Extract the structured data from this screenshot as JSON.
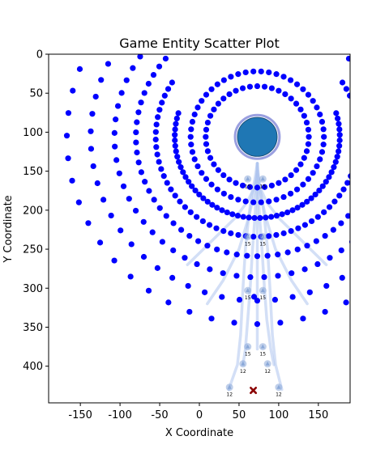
{
  "chart_data": {
    "type": "scatter",
    "title": "Game Entity Scatter Plot",
    "xlabel": "X Coordinate",
    "ylabel": "Y Coordinate",
    "xlim": [
      -190,
      190
    ],
    "ylim": [
      447,
      0
    ],
    "y_inverted": true,
    "grid": false,
    "legend": "none",
    "x_ticks": [
      -150,
      -100,
      -50,
      0,
      50,
      100,
      150
    ],
    "y_ticks": [
      0,
      50,
      100,
      150,
      200,
      250,
      300,
      350,
      400
    ],
    "colors": {
      "points": "#0000ff",
      "paths": "#aec4ee",
      "core_fill": "#1f77b4",
      "core_ring": "#8187d8",
      "marker_x": "#8b0000",
      "unit": "#8aa8d8"
    },
    "rings": [
      {
        "center": [
          73,
          106
        ],
        "radius": 65,
        "count": 44,
        "angle_start": 0,
        "angle_end": 360
      },
      {
        "center": [
          73,
          106
        ],
        "radius": 84,
        "count": 54,
        "angle_start": 0,
        "angle_end": 360
      },
      {
        "center": [
          73,
          106
        ],
        "radius": 104,
        "count": 56,
        "angle_start": -17,
        "angle_end": 197
      },
      {
        "center": [
          73,
          106
        ],
        "radius": 128,
        "count": 58,
        "angle_start": -33,
        "angle_end": 213
      },
      {
        "center": [
          73,
          106
        ],
        "radius": 153,
        "count": 55,
        "angle_start": -41,
        "angle_end": 221
      },
      {
        "center": [
          73,
          106
        ],
        "radius": 180,
        "count": 50,
        "angle_start": -46,
        "angle_end": 226
      },
      {
        "center": [
          73,
          106
        ],
        "radius": 210,
        "count": 47,
        "angle_start": -51,
        "angle_end": 231
      },
      {
        "center": [
          73,
          106
        ],
        "radius": 240,
        "count": 43,
        "angle_start": -56,
        "angle_end": 236
      }
    ],
    "core": {
      "x": 73,
      "y": 106,
      "radius": 25,
      "halo_radius": 28
    },
    "paths": [
      {
        "x": [
          37,
          48,
          52,
          55,
          58,
          62,
          66,
          70,
          73
        ],
        "y": [
          430,
          398,
          360,
          300,
          250,
          210,
          180,
          160,
          140
        ]
      },
      {
        "x": [
          55,
          58,
          61,
          64,
          67,
          70,
          72,
          73
        ],
        "y": [
          398,
          378,
          340,
          300,
          250,
          210,
          170,
          140
        ]
      },
      {
        "x": [
          73,
          73,
          73,
          73,
          73,
          73
        ],
        "y": [
          378,
          340,
          300,
          250,
          210,
          140
        ]
      },
      {
        "x": [
          94,
          90,
          85,
          82,
          79,
          76,
          74,
          73
        ],
        "y": [
          398,
          378,
          340,
          300,
          250,
          210,
          170,
          140
        ]
      },
      {
        "x": [
          104,
          96,
          92,
          89,
          86,
          82,
          78,
          75,
          73
        ],
        "y": [
          430,
          398,
          360,
          300,
          250,
          210,
          180,
          160,
          140
        ]
      },
      {
        "x": [
          -15,
          5,
          25,
          45,
          60,
          70,
          73
        ],
        "y": [
          270,
          250,
          230,
          210,
          190,
          170,
          150
        ]
      },
      {
        "x": [
          160,
          140,
          120,
          100,
          85,
          76,
          73
        ],
        "y": [
          270,
          250,
          230,
          210,
          190,
          170,
          150
        ]
      },
      {
        "x": [
          10,
          30,
          50,
          62,
          70,
          73
        ],
        "y": [
          320,
          290,
          250,
          210,
          175,
          150
        ]
      },
      {
        "x": [
          136,
          116,
          96,
          84,
          76,
          73
        ],
        "y": [
          320,
          290,
          250,
          210,
          175,
          150
        ]
      }
    ],
    "units": [
      {
        "x": 38,
        "y": 427,
        "value": 12
      },
      {
        "x": 55,
        "y": 397,
        "value": 12
      },
      {
        "x": 86,
        "y": 397,
        "value": 12
      },
      {
        "x": 100,
        "y": 427,
        "value": 12
      },
      {
        "x": 61,
        "y": 375,
        "value": 15
      },
      {
        "x": 80,
        "y": 375,
        "value": 15
      },
      {
        "x": 61,
        "y": 303,
        "value": 15
      },
      {
        "x": 80,
        "y": 303,
        "value": 15
      },
      {
        "x": 61,
        "y": 234,
        "value": 15
      },
      {
        "x": 80,
        "y": 234,
        "value": 15
      },
      {
        "x": 61,
        "y": 160,
        "value": 15
      },
      {
        "x": 80,
        "y": 160,
        "value": 15
      }
    ],
    "extra_points": [
      {
        "x": 69,
        "y": 311
      }
    ],
    "target_marker": {
      "x": 68,
      "y": 431
    }
  }
}
